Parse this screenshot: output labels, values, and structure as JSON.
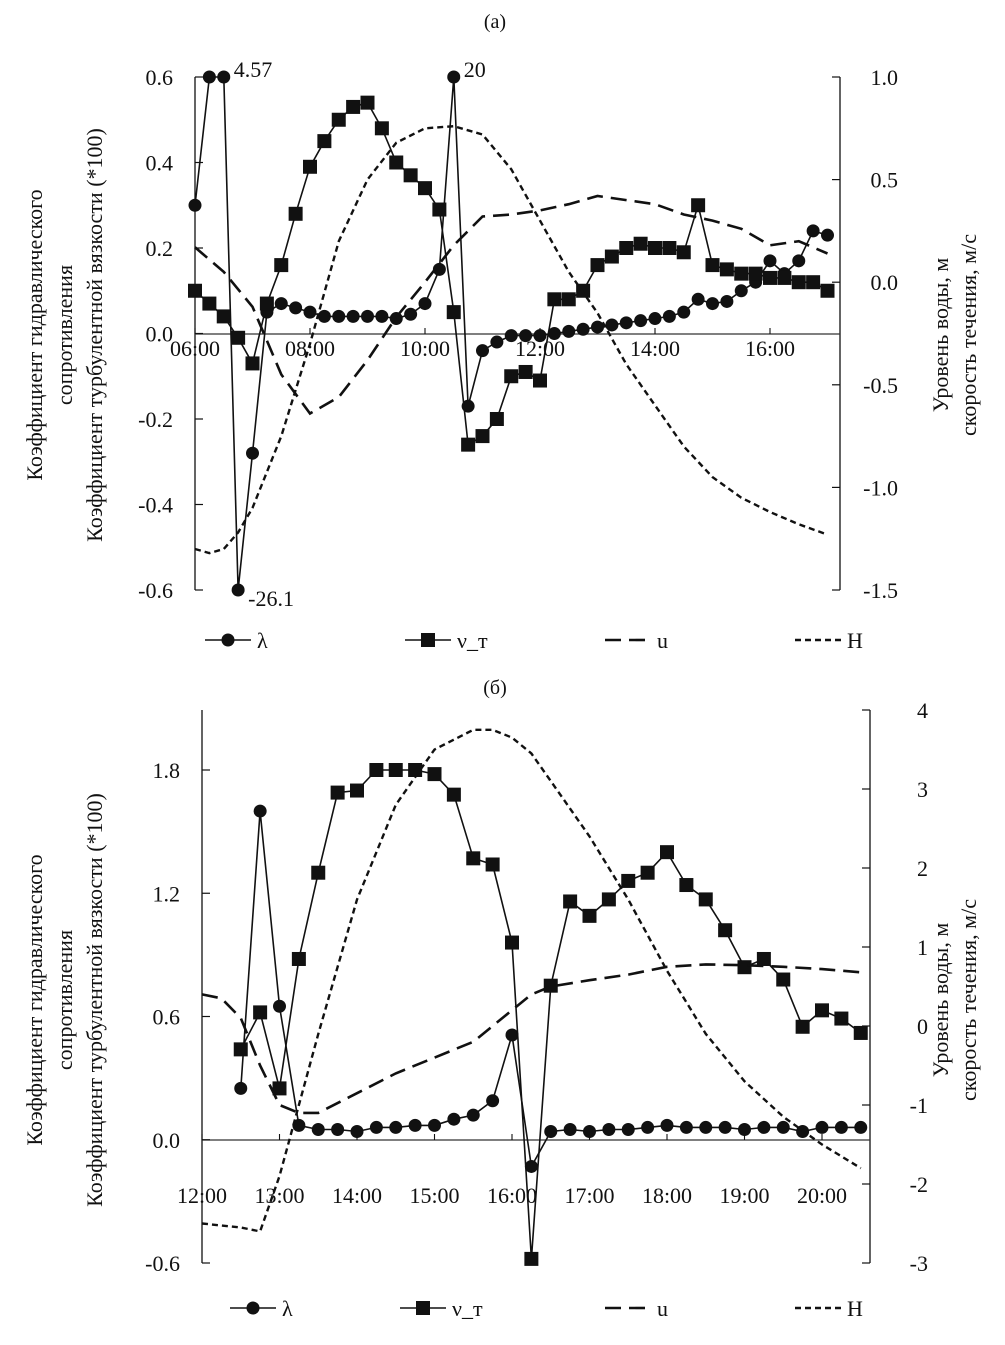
{
  "chart_data": [
    {
      "type": "line",
      "panel_label": "(a)",
      "title": "(a)",
      "xlabel": "",
      "ylabel_left": [
        "Коэффициент гидравлического",
        "сопротивления",
        "Коэффициент турбулентной вязкости (*100)"
      ],
      "ylabel_right": [
        "Уровень воды, м",
        "скорость течения, м/с"
      ],
      "x_ticks": [
        "06:00",
        "08:00",
        "10:00",
        "12:00",
        "14:00",
        "16:00"
      ],
      "x_range_hours": [
        6,
        17.25
      ],
      "ylim_left": [
        -0.6,
        0.6
      ],
      "y_ticks_left": [
        "-0.6",
        "-0.4",
        "-0.2",
        "0.0",
        "0.2",
        "0.4",
        "0.6"
      ],
      "ylim_right": [
        -1.5,
        1.0
      ],
      "y_ticks_right": [
        "-1.5",
        "-1.0",
        "-0.5",
        "0.0",
        "0.5",
        "1.0"
      ],
      "annotations": [
        {
          "text": "4.57",
          "x_hour": 6.5,
          "y": 0.6
        },
        {
          "text": "20",
          "x_hour": 10.5,
          "y": 0.6
        },
        {
          "text": "-26.1",
          "x_hour": 6.75,
          "y": -0.6
        }
      ],
      "series": [
        {
          "name": "λ",
          "axis": "left",
          "marker": "circle",
          "line": "solid",
          "x": [
            6.0,
            6.25,
            6.5,
            6.75,
            7.0,
            7.25,
            7.5,
            7.75,
            8.0,
            8.25,
            8.5,
            8.75,
            9.0,
            9.25,
            9.5,
            9.75,
            10.0,
            10.25,
            10.5,
            10.75,
            11.0,
            11.25,
            11.5,
            11.75,
            12.0,
            12.25,
            12.5,
            12.75,
            13.0,
            13.25,
            13.5,
            13.75,
            14.0,
            14.25,
            14.5,
            14.75,
            15.0,
            15.25,
            15.5,
            15.75,
            16.0,
            16.25,
            16.5,
            16.75,
            17.0
          ],
          "values": [
            0.3,
            0.6,
            0.6,
            -0.6,
            -0.28,
            0.05,
            0.07,
            0.06,
            0.05,
            0.04,
            0.04,
            0.04,
            0.04,
            0.04,
            0.035,
            0.045,
            0.07,
            0.15,
            0.6,
            -0.17,
            -0.04,
            -0.02,
            -0.005,
            -0.005,
            -0.005,
            0.0,
            0.005,
            0.01,
            0.015,
            0.02,
            0.025,
            0.03,
            0.035,
            0.04,
            0.05,
            0.08,
            0.07,
            0.075,
            0.1,
            0.12,
            0.17,
            0.14,
            0.17,
            0.24,
            0.23
          ]
        },
        {
          "name": "ν_т",
          "axis": "left",
          "marker": "square",
          "line": "solid",
          "x": [
            6.0,
            6.25,
            6.5,
            6.75,
            7.0,
            7.25,
            7.5,
            7.75,
            8.0,
            8.25,
            8.5,
            8.75,
            9.0,
            9.25,
            9.5,
            9.75,
            10.0,
            10.25,
            10.5,
            10.75,
            11.0,
            11.25,
            11.5,
            11.75,
            12.0,
            12.25,
            12.5,
            12.75,
            13.0,
            13.25,
            13.5,
            13.75,
            14.0,
            14.25,
            14.5,
            14.75,
            15.0,
            15.25,
            15.5,
            15.75,
            16.0,
            16.25,
            16.5,
            16.75,
            17.0
          ],
          "values": [
            0.1,
            0.07,
            0.04,
            -0.01,
            -0.07,
            0.07,
            0.16,
            0.28,
            0.39,
            0.45,
            0.5,
            0.53,
            0.54,
            0.48,
            0.4,
            0.37,
            0.34,
            0.29,
            0.05,
            -0.26,
            -0.24,
            -0.2,
            -0.1,
            -0.09,
            -0.11,
            0.08,
            0.08,
            0.1,
            0.16,
            0.18,
            0.2,
            0.21,
            0.2,
            0.2,
            0.19,
            0.3,
            0.16,
            0.15,
            0.14,
            0.14,
            0.13,
            0.13,
            0.12,
            0.12,
            0.1
          ]
        },
        {
          "name": "u",
          "axis": "right",
          "line": "dashed",
          "x": [
            6.0,
            6.5,
            7.0,
            7.5,
            8.0,
            8.5,
            9.0,
            9.5,
            10.0,
            10.5,
            11.0,
            11.5,
            12.0,
            12.5,
            13.0,
            13.5,
            14.0,
            14.5,
            15.0,
            15.5,
            16.0,
            16.5,
            17.0
          ],
          "values": [
            0.17,
            0.05,
            -0.12,
            -0.45,
            -0.64,
            -0.56,
            -0.38,
            -0.17,
            0.0,
            0.18,
            0.32,
            0.33,
            0.35,
            0.38,
            0.42,
            0.4,
            0.38,
            0.33,
            0.3,
            0.26,
            0.18,
            0.2,
            0.14
          ]
        },
        {
          "name": "H",
          "axis": "right",
          "line": "dotted",
          "x": [
            6.0,
            6.25,
            6.5,
            6.75,
            7.0,
            7.5,
            8.0,
            8.5,
            9.0,
            9.5,
            10.0,
            10.5,
            11.0,
            11.5,
            12.0,
            12.5,
            13.0,
            13.5,
            14.0,
            14.5,
            15.0,
            15.5,
            16.0,
            16.5,
            17.0
          ],
          "values": [
            -1.3,
            -1.32,
            -1.3,
            -1.22,
            -1.1,
            -0.75,
            -0.3,
            0.2,
            0.5,
            0.68,
            0.75,
            0.76,
            0.72,
            0.55,
            0.3,
            0.05,
            -0.15,
            -0.4,
            -0.6,
            -0.8,
            -0.95,
            -1.05,
            -1.12,
            -1.18,
            -1.23
          ]
        }
      ],
      "legend": [
        "λ",
        "ν_т",
        "u",
        "H"
      ],
      "legend_position": "bottom"
    },
    {
      "type": "line",
      "panel_label": "(б)",
      "title": "(б)",
      "xlabel": "",
      "ylabel_left": [
        "Коэффициент гидравлического",
        "сопротивления",
        "Коэффициент турбулентной вязкости (*100)"
      ],
      "ylabel_right": [
        "Уровень воды, м",
        "скорость течения, м/с"
      ],
      "x_ticks": [
        "12:00",
        "13:00",
        "14:00",
        "15:00",
        "16:00",
        "17:00",
        "18:00",
        "19:00",
        "20:00"
      ],
      "x_range_hours": [
        12,
        20.75
      ],
      "ylim_left": [
        -0.6,
        2.1
      ],
      "y_ticks_left": [
        "-0.6",
        "0.0",
        "0.6",
        "1.2",
        "1.8"
      ],
      "ylim_right": [
        -3,
        4
      ],
      "y_ticks_right": [
        "-3",
        "-2",
        "-1",
        "0",
        "1",
        "2",
        "3",
        "4"
      ],
      "series": [
        {
          "name": "λ",
          "axis": "left",
          "marker": "circle",
          "line": "solid",
          "x": [
            12.5,
            12.75,
            13.0,
            13.25,
            13.5,
            13.75,
            14.0,
            14.25,
            14.5,
            14.75,
            15.0,
            15.25,
            15.5,
            15.75,
            16.0,
            16.25,
            16.5,
            16.75,
            17.0,
            17.25,
            17.5,
            17.75,
            18.0,
            18.25,
            18.5,
            18.75,
            19.0,
            19.25,
            19.5,
            19.75,
            20.0,
            20.25,
            20.5
          ],
          "values": [
            0.25,
            1.6,
            0.65,
            0.07,
            0.05,
            0.05,
            0.04,
            0.06,
            0.06,
            0.07,
            0.07,
            0.1,
            0.12,
            0.19,
            0.51,
            -0.13,
            0.04,
            0.05,
            0.04,
            0.05,
            0.05,
            0.06,
            0.07,
            0.06,
            0.06,
            0.06,
            0.05,
            0.06,
            0.06,
            0.04,
            0.06,
            0.06,
            0.06
          ]
        },
        {
          "name": "ν_т",
          "axis": "left",
          "marker": "square",
          "line": "solid",
          "x": [
            12.5,
            12.75,
            13.0,
            13.25,
            13.5,
            13.75,
            14.0,
            14.25,
            14.5,
            14.75,
            15.0,
            15.25,
            15.5,
            15.75,
            16.0,
            16.25,
            16.5,
            16.75,
            17.0,
            17.25,
            17.5,
            17.75,
            18.0,
            18.25,
            18.5,
            18.75,
            19.0,
            19.25,
            19.5,
            19.75,
            20.0,
            20.25,
            20.5
          ],
          "values": [
            0.44,
            0.62,
            0.25,
            0.88,
            1.3,
            1.69,
            1.7,
            2.02,
            1.88,
            1.86,
            1.78,
            1.68,
            1.37,
            1.34,
            0.96,
            -0.58,
            0.75,
            1.16,
            1.09,
            1.17,
            1.26,
            1.3,
            1.4,
            1.24,
            1.17,
            1.02,
            0.84,
            0.88,
            0.78,
            0.55,
            0.63,
            0.59,
            0.52
          ]
        },
        {
          "name": "u",
          "axis": "right",
          "line": "dashed",
          "x": [
            12.0,
            12.25,
            12.5,
            12.75,
            13.0,
            13.25,
            13.5,
            14.0,
            14.5,
            15.0,
            15.5,
            16.0,
            16.25,
            16.5,
            17.0,
            17.5,
            18.0,
            18.5,
            19.0,
            19.5,
            20.0,
            20.5
          ],
          "values": [
            0.4,
            0.35,
            0.1,
            -0.5,
            -1.0,
            -1.1,
            -1.1,
            -0.85,
            -0.6,
            -0.4,
            -0.2,
            0.2,
            0.4,
            0.5,
            0.58,
            0.65,
            0.75,
            0.78,
            0.77,
            0.75,
            0.72,
            0.68
          ]
        },
        {
          "name": "H",
          "axis": "right",
          "line": "dotted",
          "x": [
            12.0,
            12.5,
            12.75,
            13.0,
            13.25,
            13.5,
            14.0,
            14.5,
            15.0,
            15.5,
            15.75,
            16.0,
            16.25,
            16.5,
            17.0,
            17.5,
            18.0,
            18.5,
            19.0,
            19.5,
            20.0,
            20.5
          ],
          "values": [
            -2.5,
            -2.55,
            -2.6,
            -1.9,
            -1.0,
            -0.1,
            1.6,
            2.8,
            3.5,
            3.75,
            3.75,
            3.65,
            3.45,
            3.1,
            2.4,
            1.6,
            0.7,
            -0.1,
            -0.7,
            -1.15,
            -1.5,
            -1.8
          ]
        }
      ],
      "legend": [
        "λ",
        "ν_т",
        "u",
        "H"
      ],
      "legend_position": "bottom"
    }
  ]
}
